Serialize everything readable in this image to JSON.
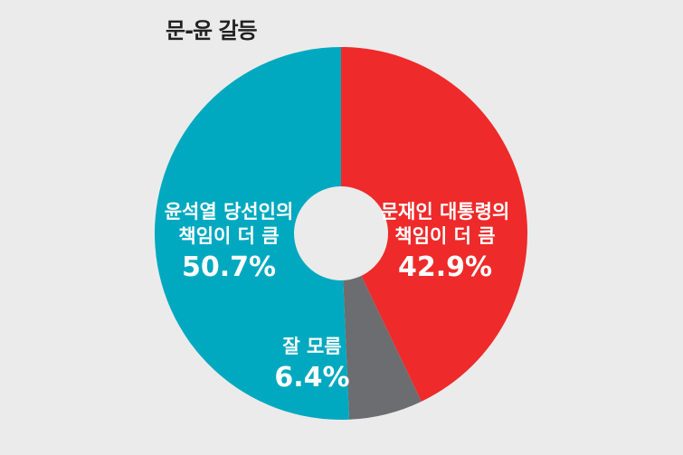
{
  "title": "문-윤 갈등",
  "chart_data": {
    "type": "pie",
    "title": "문-윤 갈등",
    "slices": [
      {
        "label_lines": [
          "문재인 대통령의",
          "책임이 더 큼"
        ],
        "value": 42.9,
        "value_label": "42.9%",
        "color": "#ee2a2a"
      },
      {
        "label_lines": [
          "잘 모름"
        ],
        "value": 6.4,
        "value_label": "6.4%",
        "color": "#6c6d70"
      },
      {
        "label_lines": [
          "윤석열 당선인의",
          "책임이 더 큼"
        ],
        "value": 50.7,
        "value_label": "50.7%",
        "color": "#00a9c0"
      }
    ],
    "start": "12 o'clock, clockwise",
    "donut": true,
    "legend": "none (labels on slices)"
  }
}
